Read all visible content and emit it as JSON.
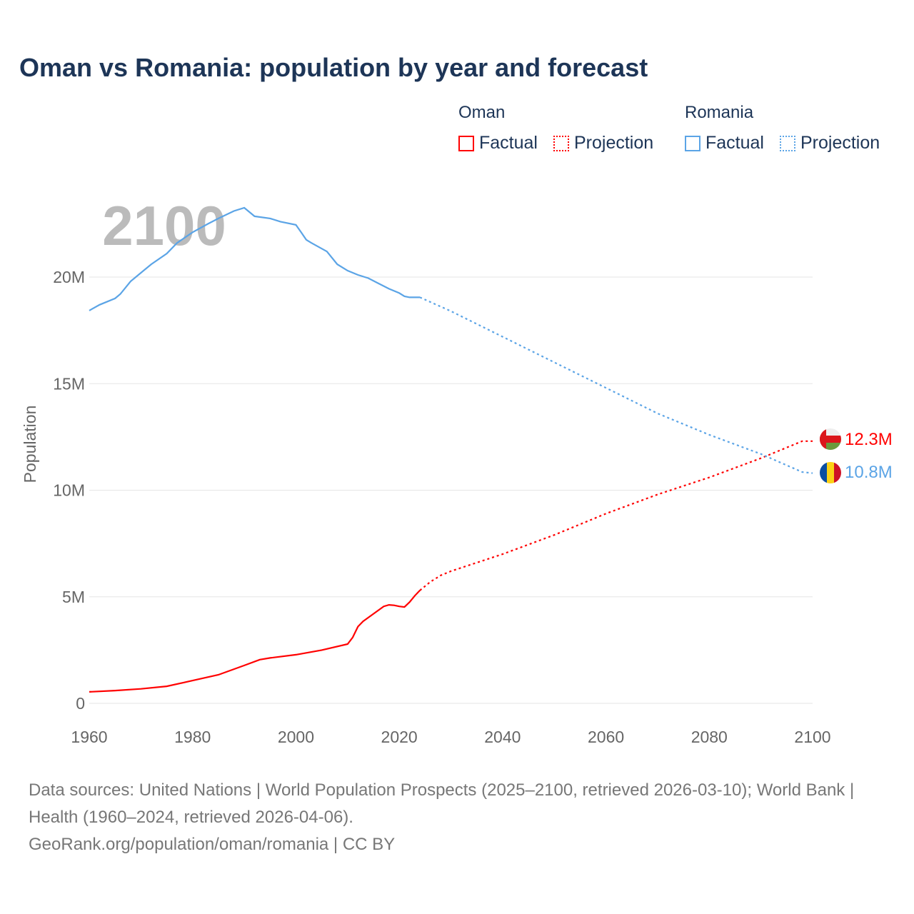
{
  "title": "Oman vs Romania: population by year and forecast",
  "legend": {
    "groups": [
      {
        "name": "Oman",
        "factual": "Factual",
        "projection": "Projection",
        "color": "#ff0000"
      },
      {
        "name": "Romania",
        "factual": "Factual",
        "projection": "Projection",
        "color": "#5ba4e6"
      }
    ]
  },
  "year_label": "2100",
  "footer": {
    "sources": "Data sources: United Nations | World Population Prospects (2025–2100, retrieved 2026-03-10); World Bank | Health (1960–2024, retrieved 2026-04-06).",
    "credit": "GeoRank.org/population/oman/romania | CC BY"
  },
  "chart_data": {
    "type": "line",
    "title": "Oman vs Romania: population by year and forecast",
    "xlabel": "",
    "ylabel": "Population",
    "xlim": [
      1960,
      2100
    ],
    "ylim": [
      0,
      23.5
    ],
    "y_unit": "millions",
    "xticks": [
      1960,
      1980,
      2000,
      2020,
      2040,
      2060,
      2080,
      2100
    ],
    "yticks": [
      {
        "v": 0,
        "label": "0"
      },
      {
        "v": 5,
        "label": "5M"
      },
      {
        "v": 10,
        "label": "10M"
      },
      {
        "v": 15,
        "label": "15M"
      },
      {
        "v": 20,
        "label": "20M"
      }
    ],
    "grid": true,
    "series": [
      {
        "name": "Oman",
        "color": "#ff0000",
        "end_label": "12.3M",
        "factual": [
          [
            1960,
            0.54
          ],
          [
            1965,
            0.6
          ],
          [
            1970,
            0.68
          ],
          [
            1975,
            0.8
          ],
          [
            1980,
            1.07
          ],
          [
            1985,
            1.34
          ],
          [
            1990,
            1.78
          ],
          [
            1993,
            2.05
          ],
          [
            1995,
            2.13
          ],
          [
            2000,
            2.28
          ],
          [
            2005,
            2.5
          ],
          [
            2010,
            2.78
          ],
          [
            2011,
            3.1
          ],
          [
            2012,
            3.6
          ],
          [
            2013,
            3.85
          ],
          [
            2015,
            4.2
          ],
          [
            2017,
            4.55
          ],
          [
            2018,
            4.62
          ],
          [
            2019,
            4.6
          ],
          [
            2020,
            4.55
          ],
          [
            2021,
            4.52
          ],
          [
            2022,
            4.75
          ],
          [
            2023,
            5.05
          ],
          [
            2024,
            5.3
          ]
        ],
        "projection": [
          [
            2024,
            5.3
          ],
          [
            2026,
            5.7
          ],
          [
            2028,
            6.0
          ],
          [
            2030,
            6.2
          ],
          [
            2040,
            7.0
          ],
          [
            2050,
            7.9
          ],
          [
            2060,
            8.9
          ],
          [
            2070,
            9.8
          ],
          [
            2080,
            10.6
          ],
          [
            2090,
            11.5
          ],
          [
            2098,
            12.3
          ],
          [
            2100,
            12.3
          ]
        ]
      },
      {
        "name": "Romania",
        "color": "#5ba4e6",
        "end_label": "10.8M",
        "factual": [
          [
            1960,
            18.43
          ],
          [
            1962,
            18.7
          ],
          [
            1965,
            19.0
          ],
          [
            1966,
            19.2
          ],
          [
            1968,
            19.8
          ],
          [
            1970,
            20.2
          ],
          [
            1972,
            20.6
          ],
          [
            1975,
            21.1
          ],
          [
            1977,
            21.6
          ],
          [
            1980,
            22.1
          ],
          [
            1983,
            22.5
          ],
          [
            1985,
            22.75
          ],
          [
            1988,
            23.1
          ],
          [
            1990,
            23.25
          ],
          [
            1992,
            22.85
          ],
          [
            1995,
            22.75
          ],
          [
            1997,
            22.6
          ],
          [
            2000,
            22.45
          ],
          [
            2001,
            22.1
          ],
          [
            2002,
            21.75
          ],
          [
            2003,
            21.6
          ],
          [
            2006,
            21.2
          ],
          [
            2008,
            20.6
          ],
          [
            2010,
            20.3
          ],
          [
            2012,
            20.1
          ],
          [
            2014,
            19.95
          ],
          [
            2016,
            19.7
          ],
          [
            2018,
            19.45
          ],
          [
            2020,
            19.25
          ],
          [
            2021,
            19.1
          ],
          [
            2022,
            19.05
          ],
          [
            2024,
            19.05
          ]
        ],
        "projection": [
          [
            2024,
            19.05
          ],
          [
            2030,
            18.4
          ],
          [
            2040,
            17.2
          ],
          [
            2050,
            16.0
          ],
          [
            2060,
            14.8
          ],
          [
            2070,
            13.6
          ],
          [
            2080,
            12.6
          ],
          [
            2090,
            11.7
          ],
          [
            2098,
            10.85
          ],
          [
            2100,
            10.8
          ]
        ]
      }
    ]
  }
}
